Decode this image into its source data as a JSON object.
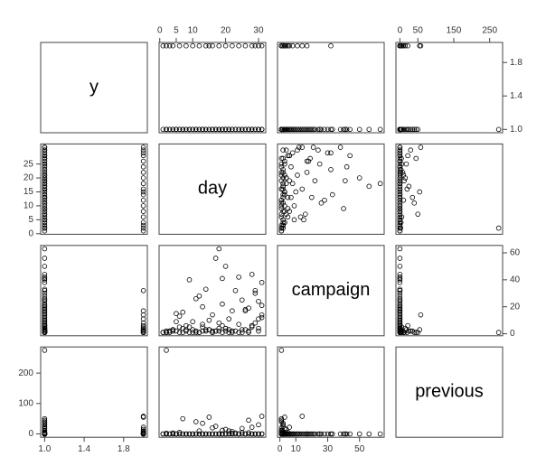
{
  "chart_data": {
    "type": "scatter-matrix",
    "variables": [
      {
        "name": "y",
        "lim": [
          0.96,
          2.04
        ],
        "xticks": [
          {
            "value": 1,
            "label": "1.0"
          },
          1.4,
          1.8
        ],
        "yticks": [
          {
            "value": 1,
            "label": "1.0"
          },
          1.4,
          1.8
        ],
        "values": [
          1,
          1,
          1,
          1,
          1,
          1,
          1,
          1,
          1,
          1,
          1,
          1,
          1,
          1,
          1,
          1,
          1,
          1,
          1,
          1,
          1,
          1,
          1,
          1,
          1,
          1,
          1,
          1,
          1,
          1,
          1,
          1,
          1,
          1,
          1,
          1,
          1,
          1,
          1,
          1,
          1,
          1,
          1,
          1,
          1,
          1,
          1,
          1,
          1,
          1,
          1,
          1,
          1,
          1,
          1,
          1,
          1,
          1,
          1,
          1,
          1,
          1,
          1,
          1,
          1,
          1,
          1,
          1,
          1,
          1,
          2,
          2,
          2,
          2,
          2,
          2,
          2,
          2,
          2,
          2,
          2,
          2,
          2,
          2,
          2,
          2,
          2,
          2,
          2,
          2,
          1,
          1,
          1,
          1,
          1,
          1,
          1,
          1,
          1,
          1
        ]
      },
      {
        "name": "day",
        "lim": [
          -0.2,
          32.2
        ],
        "xticks": [
          0,
          5,
          10,
          20,
          30
        ],
        "yticks": [
          0,
          5,
          10,
          15,
          20,
          25
        ],
        "values": [
          1,
          2,
          3,
          4,
          5,
          6,
          7,
          8,
          9,
          10,
          11,
          12,
          13,
          14,
          15,
          16,
          17,
          18,
          19,
          20,
          21,
          22,
          23,
          24,
          25,
          26,
          27,
          28,
          29,
          30,
          31,
          18,
          2,
          28,
          20,
          11,
          14,
          31,
          7,
          17,
          3,
          19,
          5,
          26,
          9,
          22,
          13,
          29,
          16,
          24,
          2,
          30,
          8,
          21,
          12,
          27,
          4,
          15,
          23,
          6,
          19,
          25,
          10,
          18,
          28,
          5,
          20,
          31,
          13,
          9,
          1,
          4,
          8,
          12,
          16,
          20,
          24,
          28,
          30,
          31,
          3,
          6,
          10,
          14,
          18,
          22,
          26,
          29,
          2,
          15,
          21,
          17,
          11,
          25,
          7,
          30,
          19,
          13,
          27,
          16
        ]
      },
      {
        "name": "campaign",
        "lim": [
          -1.48,
          65.48
        ],
        "xticks": [
          0,
          10,
          30,
          50
        ],
        "yticks": [
          0,
          20,
          40,
          60
        ],
        "values": [
          1,
          2,
          1,
          3,
          2,
          1,
          4,
          2,
          1,
          3,
          2,
          1,
          5,
          2,
          3,
          1,
          2,
          4,
          6,
          2,
          3,
          1,
          2,
          7,
          1,
          3,
          2,
          5,
          8,
          4,
          12,
          63,
          1,
          44,
          50,
          26,
          33,
          38,
          16,
          56,
          2,
          22,
          9,
          18,
          40,
          17,
          20,
          30,
          14,
          42,
          1,
          24,
          6,
          11,
          28,
          19,
          3,
          10,
          32,
          13,
          41,
          25,
          9,
          2,
          6,
          15,
          4,
          21,
          7,
          5,
          1,
          2,
          3,
          1,
          2,
          4,
          1,
          6,
          11,
          14,
          2,
          5,
          1,
          3,
          8,
          2,
          17,
          32,
          1,
          3,
          1,
          2,
          1,
          3,
          1,
          2,
          1,
          2,
          1,
          1
        ]
      },
      {
        "name": "previous",
        "lim": [
          -11,
          286
        ],
        "xticks": [
          0,
          50,
          150,
          250
        ],
        "yticks": [
          0,
          100,
          200
        ],
        "values": [
          0,
          0,
          0,
          0,
          0,
          0,
          0,
          0,
          0,
          0,
          0,
          0,
          0,
          0,
          0,
          0,
          0,
          0,
          0,
          0,
          1,
          2,
          3,
          0,
          5,
          0,
          4,
          0,
          0,
          0,
          0,
          0,
          275,
          0,
          0,
          0,
          0,
          0,
          0,
          0,
          0,
          0,
          0,
          0,
          0,
          0,
          0,
          0,
          0,
          0,
          2,
          0,
          0,
          0,
          0,
          0,
          0,
          0,
          0,
          0,
          0,
          0,
          0,
          0,
          0,
          0,
          0,
          0,
          0,
          0,
          0,
          3,
          0,
          10,
          0,
          15,
          0,
          22,
          0,
          58,
          0,
          5,
          0,
          0,
          0,
          8,
          0,
          0,
          0,
          55,
          10,
          25,
          40,
          18,
          50,
          30,
          12,
          35,
          45,
          20
        ]
      }
    ]
  }
}
